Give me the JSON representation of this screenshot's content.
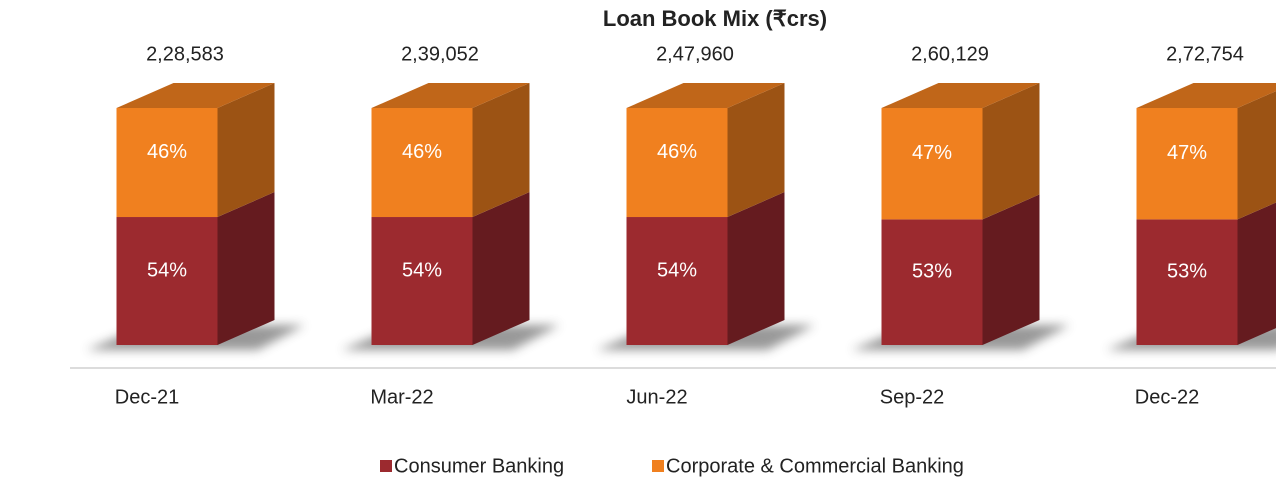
{
  "chart_data": {
    "type": "bar3d_stacked",
    "title": "Loan Book Mix (₹crs)",
    "categories": [
      "Dec-21",
      "Mar-22",
      "Jun-22",
      "Sep-22",
      "Dec-22"
    ],
    "total_labels": [
      "2,28,583",
      "2,39,052",
      "2,47,960",
      "2,60,129",
      "2,72,754"
    ],
    "series": [
      {
        "name": "Consumer Banking",
        "color": "#9c2a2f",
        "values": [
          54,
          54,
          54,
          53,
          53
        ],
        "value_labels": [
          "54%",
          "54%",
          "54%",
          "53%",
          "53%"
        ]
      },
      {
        "name": "Corporate & Commercial Banking",
        "color": "#f0801f",
        "values": [
          46,
          46,
          46,
          47,
          47
        ],
        "value_labels": [
          "46%",
          "46%",
          "46%",
          "47%",
          "47%"
        ]
      }
    ],
    "legend": "bottom"
  }
}
